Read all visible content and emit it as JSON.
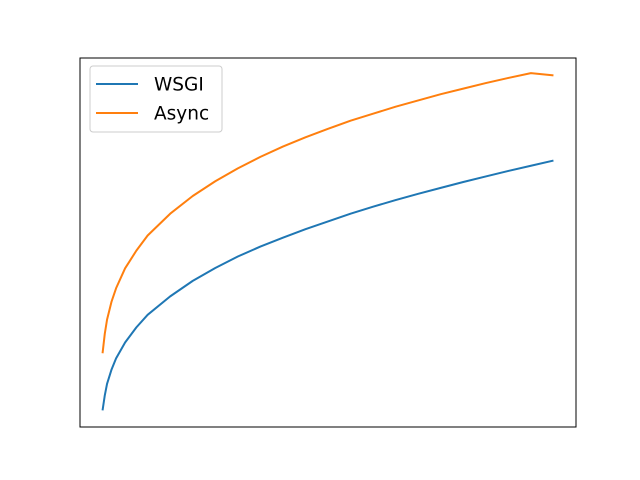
{
  "chart_data": {
    "type": "line",
    "title": "",
    "xlabel": "",
    "ylabel": "",
    "xticks_visible": false,
    "yticks_visible": false,
    "grid": false,
    "legend_placement": "upper-left",
    "xlim": [
      -0.05,
      1.05
    ],
    "ylim": [
      0.0,
      1.0
    ],
    "x": [
      0.0,
      0.005,
      0.01,
      0.02,
      0.03,
      0.05,
      0.075,
      0.1,
      0.15,
      0.2,
      0.25,
      0.3,
      0.35,
      0.4,
      0.45,
      0.5,
      0.55,
      0.6,
      0.65,
      0.7,
      0.75,
      0.8,
      0.85,
      0.9,
      0.95,
      1.0
    ],
    "series": [
      {
        "name": "WSGI",
        "color": "#1f77b4",
        "values": [
          0.045,
          0.086,
          0.117,
          0.156,
          0.186,
          0.229,
          0.27,
          0.304,
          0.354,
          0.396,
          0.431,
          0.462,
          0.489,
          0.513,
          0.536,
          0.557,
          0.578,
          0.597,
          0.615,
          0.632,
          0.648,
          0.664,
          0.679,
          0.694,
          0.708,
          0.722
        ]
      },
      {
        "name": "Async",
        "color": "#ff7f0e",
        "values": [
          0.2,
          0.253,
          0.291,
          0.34,
          0.376,
          0.43,
          0.478,
          0.519,
          0.578,
          0.626,
          0.666,
          0.701,
          0.732,
          0.76,
          0.785,
          0.808,
          0.83,
          0.849,
          0.868,
          0.885,
          0.902,
          0.917,
          0.932,
          0.946,
          0.959,
          0.953
        ]
      }
    ]
  }
}
